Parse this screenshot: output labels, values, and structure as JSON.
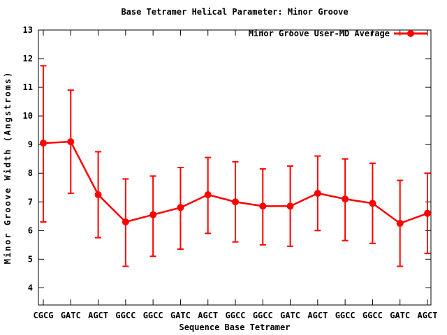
{
  "window": {
    "background_color": "#ffffff"
  },
  "chart_data": {
    "type": "line",
    "title": "Base Tetramer Helical Parameter: Minor Groove",
    "xlabel": "Sequence Base Tetramer",
    "ylabel": "Minor Groove Width (Angstroms)",
    "legend": [
      {
        "label": "Minor Groove User-MD Average",
        "color": "#ff0000",
        "marker": "filled-circle",
        "position": "top-right"
      }
    ],
    "categories": [
      "CGCG",
      "GATC",
      "AGCT",
      "GGCC",
      "GGCC",
      "GATC",
      "AGCT",
      "GGCC",
      "GGCC",
      "GATC",
      "AGCT",
      "GGCC",
      "GGCC",
      "GATC",
      "AGCT"
    ],
    "series": [
      {
        "name": "Minor Groove User-MD Average",
        "values": [
          9.05,
          9.1,
          7.25,
          6.3,
          6.55,
          6.8,
          7.25,
          7.0,
          6.85,
          6.85,
          7.3,
          7.1,
          6.95,
          6.25,
          6.6
        ],
        "err_low": [
          6.3,
          7.3,
          5.75,
          4.75,
          5.1,
          5.35,
          5.9,
          5.6,
          5.5,
          5.45,
          6.0,
          5.65,
          5.55,
          4.75,
          5.2
        ],
        "err_high": [
          11.75,
          10.9,
          8.75,
          7.8,
          7.9,
          8.2,
          8.55,
          8.4,
          8.15,
          8.25,
          8.6,
          8.5,
          8.35,
          7.75,
          8.0
        ]
      }
    ],
    "yticks": [
      4,
      5,
      6,
      7,
      8,
      9,
      10,
      11,
      12,
      13
    ],
    "ylim": [
      3.4,
      13
    ],
    "grid": false,
    "line_color": "#ff0000",
    "frame_color": "#000000",
    "background_color": "#ffffff"
  }
}
